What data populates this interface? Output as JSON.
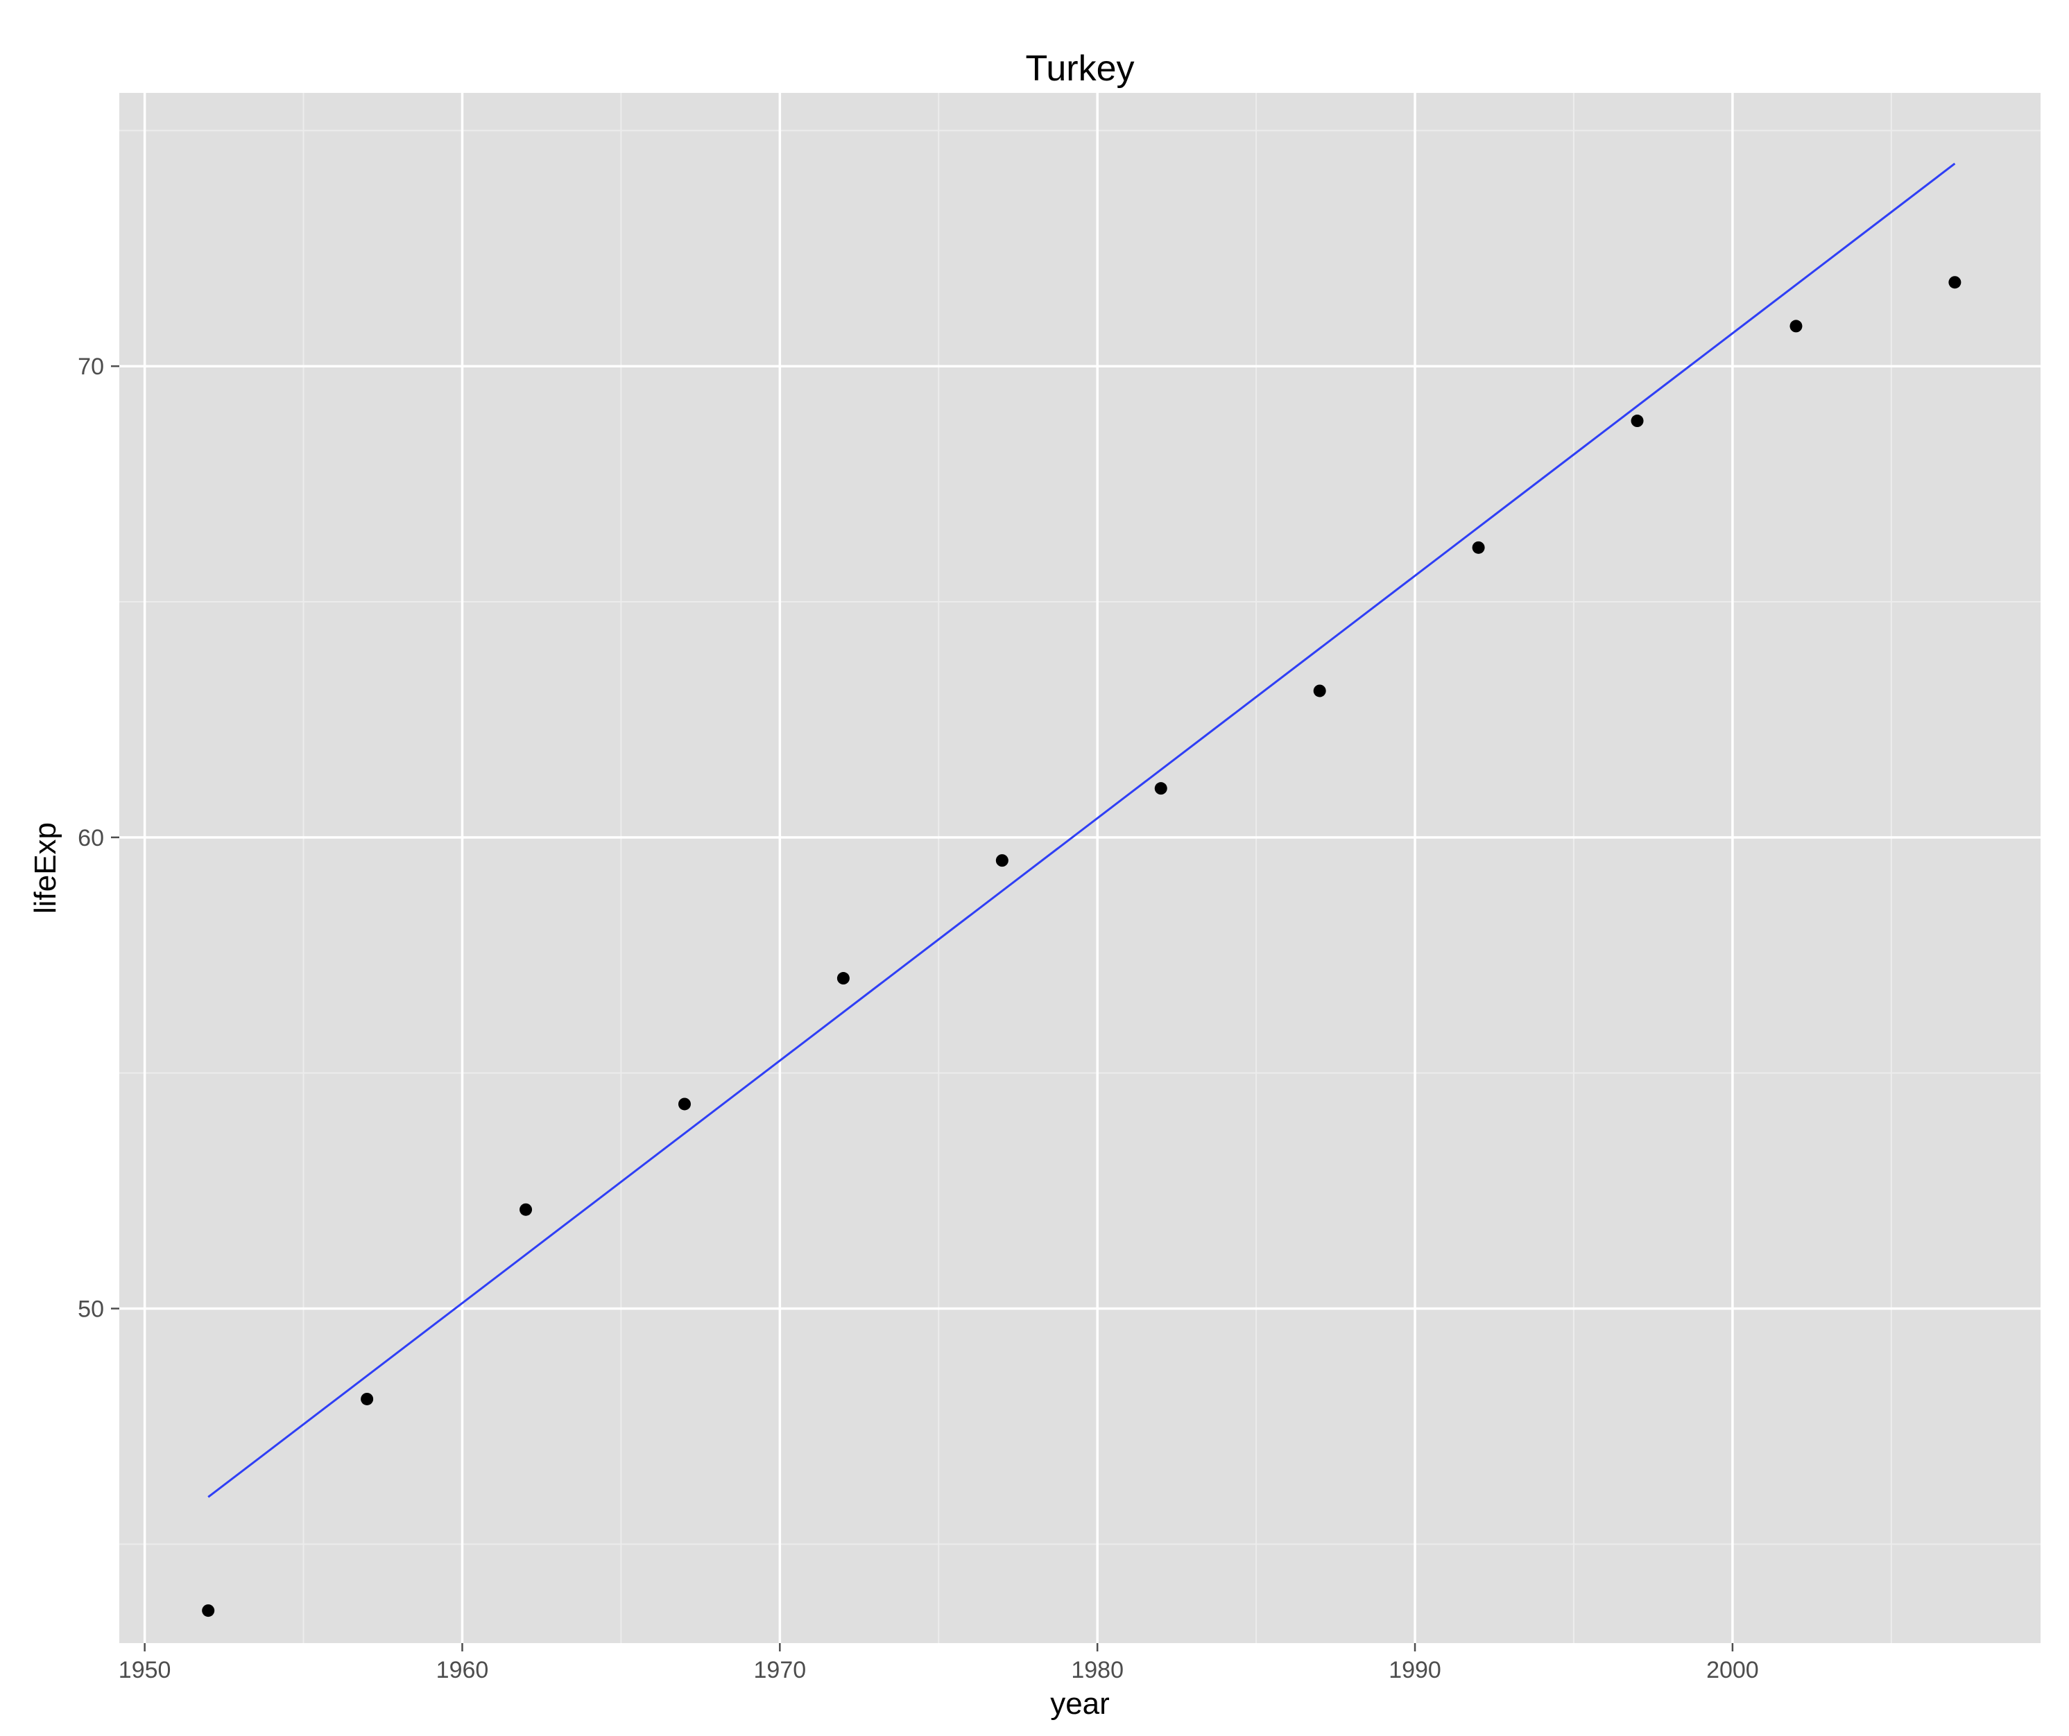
{
  "chart_data": {
    "type": "scatter",
    "title": "Turkey",
    "xlabel": "year",
    "ylabel": "lifeExp",
    "xlim": [
      1949.2,
      2009.7
    ],
    "ylim": [
      42.9,
      75.8
    ],
    "x_ticks": [
      1950,
      1960,
      1970,
      1980,
      1990,
      2000
    ],
    "y_ticks": [
      50,
      60,
      70
    ],
    "grid": true,
    "series": [
      {
        "type": "scatter",
        "x": [
          1952,
          1957,
          1962,
          1967,
          1972,
          1977,
          1982,
          1987,
          1992,
          1997,
          2002,
          2007
        ],
        "y": [
          43.59,
          48.08,
          52.1,
          54.34,
          57.01,
          59.51,
          61.04,
          63.11,
          66.15,
          68.84,
          70.85,
          71.78
        ]
      },
      {
        "type": "line",
        "x": [
          1952,
          2007
        ],
        "y": [
          46.0,
          74.3
        ]
      }
    ],
    "colors": {
      "panel": "#dfdfdf",
      "grid_major": "#ffffff",
      "grid_minor": "#ececec",
      "points": "#000000",
      "fit_line": "#2f3ff5"
    }
  }
}
